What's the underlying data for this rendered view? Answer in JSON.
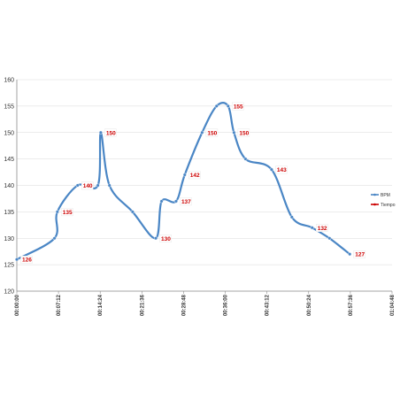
{
  "chart_data": {
    "type": "line",
    "title": "",
    "xlabel": "",
    "ylabel": "",
    "ylim": [
      120,
      160
    ],
    "yticks": [
      120,
      125,
      130,
      135,
      140,
      145,
      150,
      155,
      160
    ],
    "xticks": [
      "00:00:00",
      "00:07:12",
      "00:14:24",
      "00:21:36",
      "00:28:48",
      "00:36:00",
      "00:43:12",
      "00:50:24",
      "00:57:36",
      "01:04:48"
    ],
    "xlim_minutes": [
      0,
      64.8
    ],
    "grid": "horizontal",
    "legend_position": "right",
    "smooth": true,
    "series": [
      {
        "name": "BPM",
        "color": "#4a86c5",
        "x_minutes": [
          0,
          6.5,
          7.0,
          10.5,
          14.0,
          14.5,
          16.0,
          20.0,
          24.0,
          25.0,
          27.5,
          29.0,
          32.0,
          34.5,
          36.5,
          37.5,
          39.5,
          44.0,
          47.5,
          51.0,
          54.0,
          57.5
        ],
        "values": [
          126,
          130,
          135,
          140,
          140,
          150,
          140,
          135,
          130,
          137,
          137,
          142,
          150,
          155,
          155,
          150,
          145,
          143,
          134,
          132,
          130,
          127
        ]
      },
      {
        "name": "Tiempo",
        "color": "#cc0000",
        "values": []
      }
    ],
    "data_labels": [
      {
        "text": "126",
        "x_minutes": 0.0,
        "value": 126
      },
      {
        "text": "135",
        "x_minutes": 7.0,
        "value": 135
      },
      {
        "text": "140",
        "x_minutes": 10.5,
        "value": 140
      },
      {
        "text": "150",
        "x_minutes": 14.5,
        "value": 150
      },
      {
        "text": "130",
        "x_minutes": 24.0,
        "value": 130
      },
      {
        "text": "142",
        "x_minutes": 29.0,
        "value": 142
      },
      {
        "text": "137",
        "x_minutes": 27.5,
        "value": 137
      },
      {
        "text": "150",
        "x_minutes": 32.0,
        "value": 150
      },
      {
        "text": "155",
        "x_minutes": 36.5,
        "value": 155
      },
      {
        "text": "150",
        "x_minutes": 37.5,
        "value": 150
      },
      {
        "text": "143",
        "x_minutes": 44.0,
        "value": 143
      },
      {
        "text": "132",
        "x_minutes": 51.0,
        "value": 132
      },
      {
        "text": "127",
        "x_minutes": 57.5,
        "value": 127
      }
    ]
  }
}
